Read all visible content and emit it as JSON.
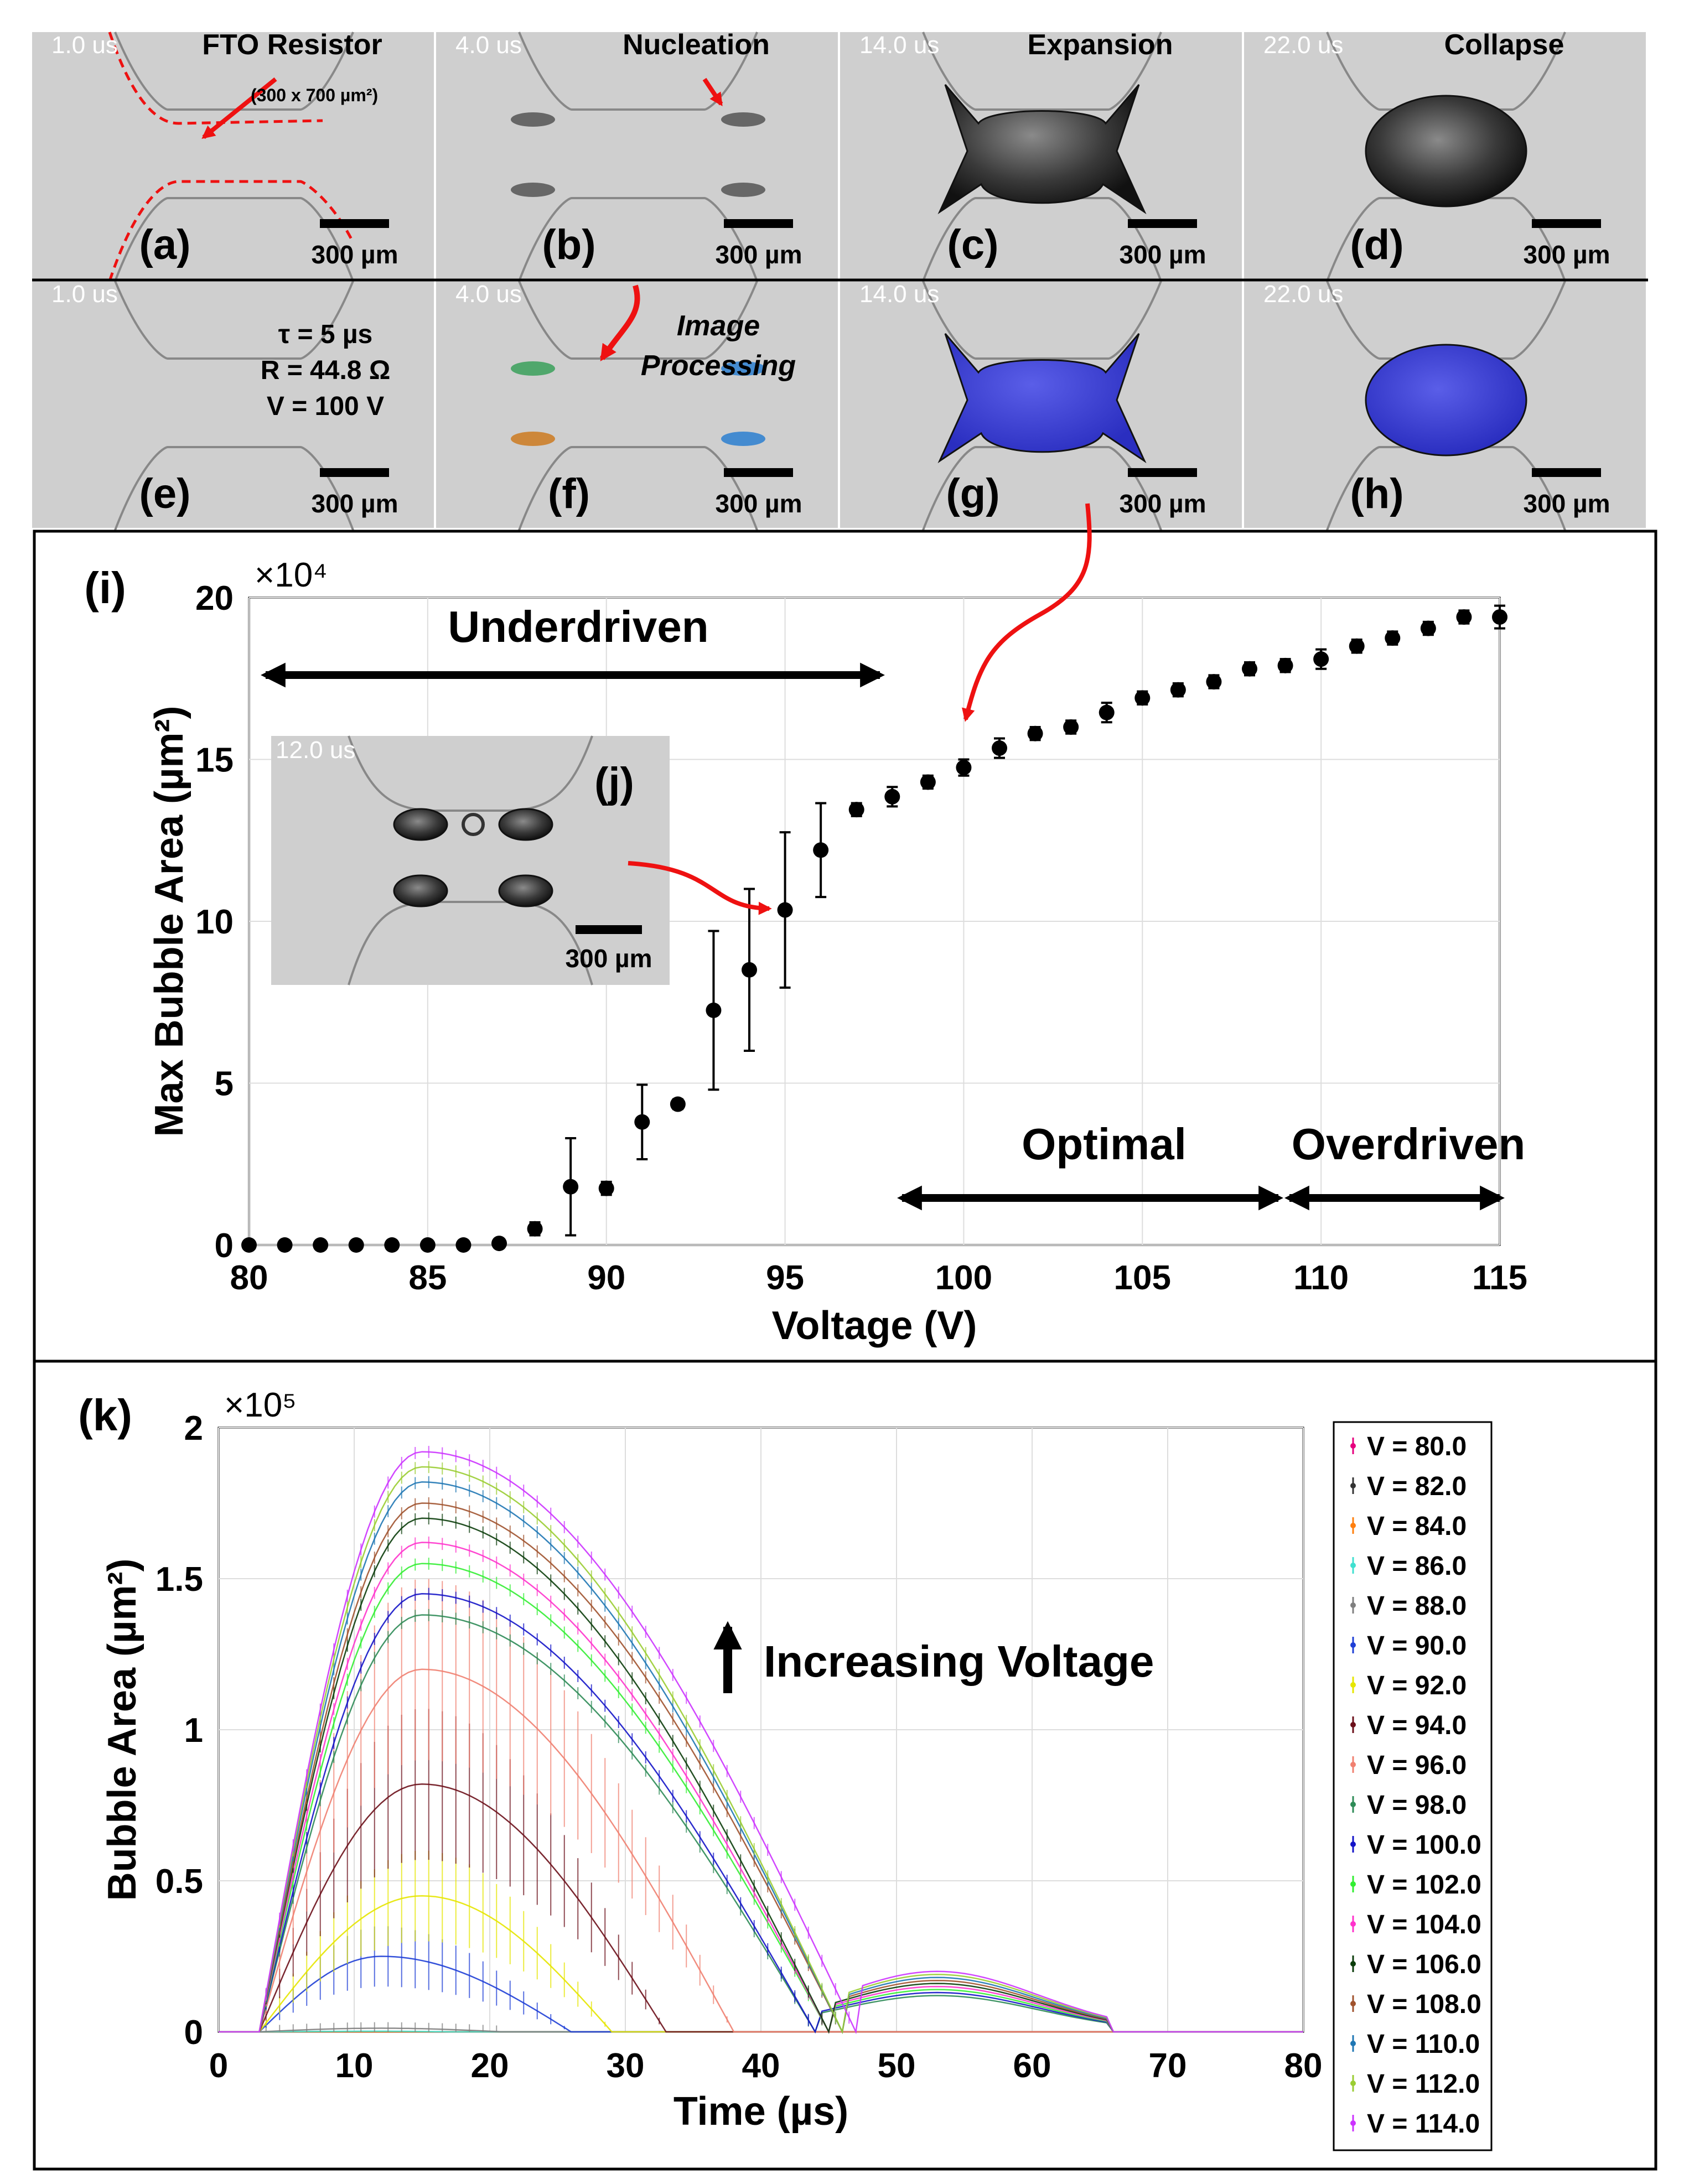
{
  "panels": [
    {
      "tag": "(a)",
      "time": "1.0 us",
      "title": "FTO Resistor",
      "note": "(300 x 700 µm²)",
      "scale": "300 µm",
      "kind": "resistor"
    },
    {
      "tag": "(b)",
      "time": "4.0 us",
      "title": "Nucleation",
      "scale": "300 µm",
      "kind": "nucleation"
    },
    {
      "tag": "(c)",
      "time": "14.0 us",
      "title": "Expansion",
      "scale": "300 µm",
      "kind": "expansion"
    },
    {
      "tag": "(d)",
      "time": "22.0 us",
      "title": "Collapse",
      "scale": "300 µm",
      "kind": "collapse"
    },
    {
      "tag": "(e)",
      "time": "1.0 us",
      "params": [
        "τ = 5 µs",
        "R = 44.8 Ω",
        "V = 100 V"
      ],
      "scale": "300 µm",
      "kind": "empty"
    },
    {
      "tag": "(f)",
      "time": "4.0 us",
      "title": "Image",
      "title2": "Processing",
      "scale": "300 µm",
      "kind": "nucleation-colored"
    },
    {
      "tag": "(g)",
      "time": "14.0 us",
      "scale": "300 µm",
      "kind": "expansion-blue"
    },
    {
      "tag": "(h)",
      "time": "22.0 us",
      "scale": "300 µm",
      "kind": "collapse-blue"
    }
  ],
  "colors": {
    "blue_fill": "#3b3fd0",
    "arrow_red": "#ee1111",
    "grid": "#dddddd"
  },
  "inset": {
    "tag": "(j)",
    "time": "12.0 us",
    "scale": "300 µm"
  },
  "chart_data": [
    {
      "id": "i",
      "tag": "(i)",
      "type": "scatter",
      "title": "",
      "xlabel": "Voltage (V)",
      "ylabel": "Max Bubble Area (µm²)",
      "exponent": "×10⁴",
      "xlim": [
        80,
        115
      ],
      "ylim": [
        0,
        20
      ],
      "xticks": [
        80,
        85,
        90,
        95,
        100,
        105,
        110,
        115
      ],
      "yticks": [
        0,
        5,
        10,
        15,
        20
      ],
      "grid": true,
      "x": [
        80,
        81,
        82,
        83,
        84,
        85,
        86,
        87,
        88,
        89,
        90,
        91,
        92,
        93,
        94,
        95,
        96,
        97,
        98,
        99,
        100,
        101,
        102,
        103,
        104,
        105,
        106,
        107,
        108,
        109,
        110,
        111,
        112,
        113,
        114,
        115
      ],
      "y": [
        0,
        0,
        0,
        0,
        0,
        0,
        0,
        0.05,
        0.5,
        1.8,
        1.75,
        3.8,
        4.35,
        7.25,
        8.5,
        10.35,
        12.2,
        13.45,
        13.85,
        14.3,
        14.75,
        15.35,
        15.8,
        16.0,
        16.45,
        16.9,
        17.15,
        17.4,
        17.8,
        17.9,
        18.1,
        18.5,
        18.75,
        19.05,
        19.4,
        19.4
      ],
      "err": [
        0,
        0,
        0,
        0,
        0,
        0,
        0,
        0.05,
        0.2,
        1.5,
        0.2,
        1.15,
        0.15,
        2.45,
        2.5,
        2.4,
        1.45,
        0.2,
        0.3,
        0.2,
        0.25,
        0.3,
        0.2,
        0.2,
        0.3,
        0.2,
        0.2,
        0.2,
        0.2,
        0.2,
        0.3,
        0.2,
        0.2,
        0.2,
        0.2,
        0.35
      ],
      "annotations": {
        "underdriven": "Underdriven",
        "optimal": "Optimal",
        "overdriven": "Overdriven"
      }
    },
    {
      "id": "k",
      "tag": "(k)",
      "type": "line",
      "title": "",
      "xlabel": "Time (µs)",
      "ylabel": "Bubble Area (µm²)",
      "exponent": "×10⁵",
      "xlim": [
        0,
        80
      ],
      "ylim": [
        0,
        2
      ],
      "xticks": [
        0,
        10,
        20,
        30,
        40,
        50,
        60,
        70,
        80
      ],
      "yticks": [
        0,
        0.5,
        1,
        1.5,
        2
      ],
      "ytick_labels": [
        "0",
        "0.5",
        "1",
        "1.5",
        "2"
      ],
      "grid": true,
      "legend_position": "right",
      "annotation": "Increasing Voltage",
      "series": [
        {
          "name": "V = 80.0",
          "color": "#e6007e",
          "peak": 0.0,
          "peak_t": 12,
          "end": 16,
          "err": 0.0,
          "second": 0
        },
        {
          "name": "V = 82.0",
          "color": "#333333",
          "peak": 0.0,
          "peak_t": 12,
          "end": 16,
          "err": 0.0,
          "second": 0
        },
        {
          "name": "V = 84.0",
          "color": "#ff7f0e",
          "peak": 0.0,
          "peak_t": 12,
          "end": 16,
          "err": 0.0,
          "second": 0
        },
        {
          "name": "V = 86.0",
          "color": "#40e0d0",
          "peak": 0.002,
          "peak_t": 12,
          "end": 17,
          "err": 0.002,
          "second": 0
        },
        {
          "name": "V = 88.0",
          "color": "#7f7f7f",
          "peak": 0.012,
          "peak_t": 12,
          "end": 21,
          "err": 0.01,
          "second": 0
        },
        {
          "name": "V = 90.0",
          "color": "#1f3fd6",
          "peak": 0.25,
          "peak_t": 12,
          "end": 26,
          "err": 0.1,
          "second": 0
        },
        {
          "name": "V = 92.0",
          "color": "#e6e600",
          "peak": 0.45,
          "peak_t": 15,
          "end": 29,
          "err": 0.15,
          "second": 0
        },
        {
          "name": "V = 94.0",
          "color": "#6b0f1a",
          "peak": 0.82,
          "peak_t": 15,
          "end": 33,
          "err": 0.25,
          "second": 0
        },
        {
          "name": "V = 96.0",
          "color": "#f08070",
          "peak": 1.2,
          "peak_t": 15,
          "end": 38,
          "err": 0.3,
          "second": 0
        },
        {
          "name": "V = 98.0",
          "color": "#2e8b57",
          "peak": 1.38,
          "peak_t": 15,
          "end": 44,
          "err": 0.02,
          "second": 0.12
        },
        {
          "name": "V = 100.0",
          "color": "#1414c8",
          "peak": 1.45,
          "peak_t": 15,
          "end": 44,
          "err": 0.02,
          "second": 0.13
        },
        {
          "name": "V = 102.0",
          "color": "#33ee33",
          "peak": 1.55,
          "peak_t": 15,
          "end": 45,
          "err": 0.02,
          "second": 0.14
        },
        {
          "name": "V = 104.0",
          "color": "#ff33cc",
          "peak": 1.62,
          "peak_t": 15,
          "end": 45,
          "err": 0.02,
          "second": 0.15
        },
        {
          "name": "V = 106.0",
          "color": "#0b3d0b",
          "peak": 1.7,
          "peak_t": 15,
          "end": 45,
          "err": 0.02,
          "second": 0.16
        },
        {
          "name": "V = 108.0",
          "color": "#a0522d",
          "peak": 1.75,
          "peak_t": 15,
          "end": 46,
          "err": 0.02,
          "second": 0.17
        },
        {
          "name": "V = 110.0",
          "color": "#1f77b4",
          "peak": 1.82,
          "peak_t": 15,
          "end": 46,
          "err": 0.02,
          "second": 0.18
        },
        {
          "name": "V = 112.0",
          "color": "#9acd32",
          "peak": 1.87,
          "peak_t": 15,
          "end": 46,
          "err": 0.02,
          "second": 0.19
        },
        {
          "name": "V = 114.0",
          "color": "#cc33ff",
          "peak": 1.92,
          "peak_t": 15,
          "end": 47,
          "err": 0.02,
          "second": 0.2
        }
      ]
    }
  ]
}
